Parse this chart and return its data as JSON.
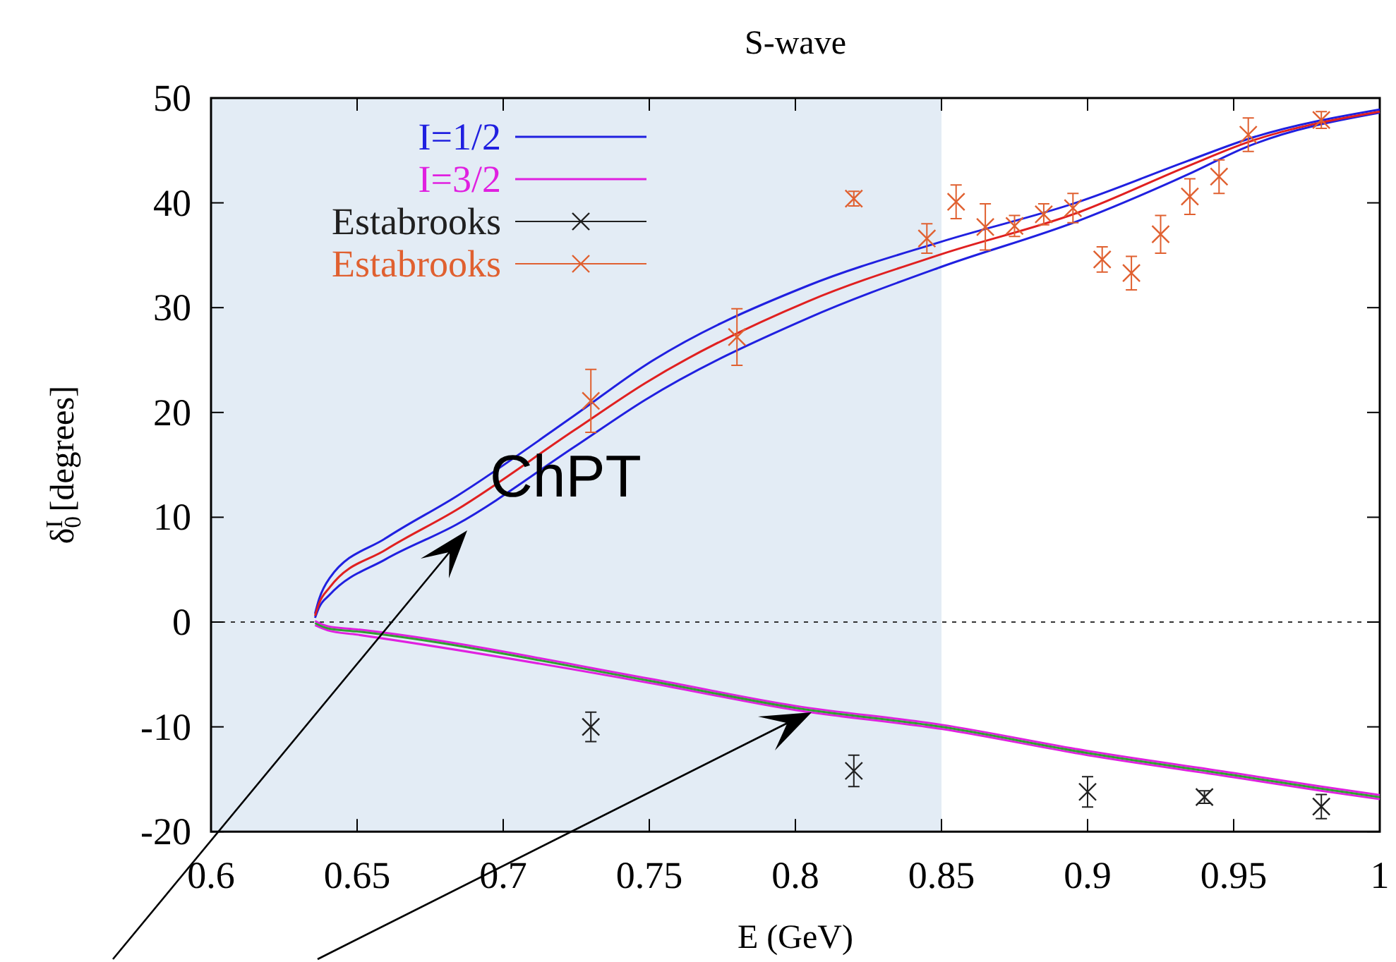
{
  "chart_data": {
    "type": "line",
    "title": "S-wave",
    "xlabel": "E (GeV)",
    "ylabel": "δ$_{0}$$^{I}$ [degrees]",
    "xlim": [
      0.6,
      1
    ],
    "xticks": [
      0.6,
      0.65,
      0.7,
      0.75,
      0.8,
      0.85,
      0.9,
      0.95,
      1
    ],
    "ylim": [
      -20,
      50
    ],
    "yticks": [
      -20,
      -10,
      0,
      10,
      20,
      30,
      40,
      50
    ],
    "grid": false,
    "legend": "top left",
    "line_style": "solid",
    "annotations": [
      "ChPT"
    ],
    "ref_lines": [
      {
        "axis": "y",
        "value": 0,
        "color": "#333333",
        "line_style": "dashed"
      }
    ],
    "bands": [
      {
        "axis": "x",
        "from": 0.6,
        "to": 0.85,
        "color": "#e3ecf5"
      }
    ],
    "series": [
      {
        "name": "I=1/2",
        "color": "#2020e0",
        "marker": "none",
        "x": [
          0.6356,
          0.637,
          0.6406,
          0.6598,
          0.684,
          0.7243,
          0.7486,
          0.8043,
          0.85,
          0.897,
          0.9343,
          0.955,
          1.0
        ],
        "values": [
          0.8,
          2.2,
          4.2,
          8.0,
          12.0,
          19.7,
          24.5,
          32.1,
          36.3,
          40.1,
          44.0,
          46.1,
          48.9
        ]
      },
      {
        "color": "#2020e0",
        "marker": "none",
        "x": [
          0.6356,
          0.637,
          0.6406,
          0.6598,
          0.684,
          0.7243,
          0.7486,
          0.8043,
          0.85,
          0.897,
          0.9343,
          0.955,
          1.0
        ],
        "values": [
          0.4,
          1.4,
          2.6,
          6.0,
          9.3,
          16.7,
          21.2,
          29.0,
          33.9,
          38.3,
          42.7,
          45.4,
          48.6
        ]
      },
      {
        "color": "#e02020",
        "marker": "none",
        "x": [
          0.6356,
          0.637,
          0.6406,
          0.6598,
          0.684,
          0.7243,
          0.7486,
          0.8043,
          0.85,
          0.897,
          0.9343,
          0.955,
          1.0
        ],
        "values": [
          0.6,
          1.8,
          3.3,
          6.9,
          10.7,
          18.3,
          22.8,
          30.6,
          35.1,
          39.1,
          43.5,
          45.8,
          48.7
        ]
      },
      {
        "name": "I=3/2",
        "color": "#e020e0",
        "marker": "none",
        "x": [
          0.6356,
          0.64,
          0.65,
          0.75,
          0.8,
          0.85,
          0.9,
          0.95,
          0.98,
          1.0
        ],
        "values": [
          0.1,
          -0.4,
          -0.7,
          -5.4,
          -8.0,
          -9.8,
          -12.3,
          -14.4,
          -15.7,
          -16.5
        ]
      },
      {
        "color": "#e020e0",
        "marker": "none",
        "x": [
          0.6356,
          0.64,
          0.65,
          0.75,
          0.8,
          0.85,
          0.9,
          0.95,
          0.98,
          1.0
        ],
        "values": [
          -0.3,
          -0.8,
          -1.2,
          -5.8,
          -8.4,
          -10.2,
          -12.7,
          -14.8,
          -16.1,
          -16.9
        ]
      },
      {
        "color": "#30a030",
        "marker": "none",
        "x": [
          0.6356,
          0.64,
          0.65,
          0.75,
          0.8,
          0.85,
          0.9,
          0.95,
          0.98,
          1.0
        ],
        "values": [
          -0.1,
          -0.6,
          -0.9,
          -5.6,
          -8.2,
          -10.0,
          -12.5,
          -14.6,
          -15.9,
          -16.7
        ]
      },
      {
        "name": "Estabrooks",
        "type": "scatter",
        "color": "#202020",
        "marker": "cross",
        "x": [
          0.73,
          0.82,
          0.9,
          0.94,
          0.98
        ],
        "values": [
          -10.0,
          -14.2,
          -16.2,
          -16.7,
          -17.6
        ],
        "errors": [
          1.4,
          1.5,
          1.45,
          0.6,
          1.15
        ]
      },
      {
        "name": "Estabrooks",
        "type": "scatter",
        "color": "#e06030",
        "marker": "cross",
        "x": [
          0.73,
          0.78,
          0.82,
          0.845,
          0.855,
          0.865,
          0.875,
          0.885,
          0.895,
          0.905,
          0.915,
          0.925,
          0.935,
          0.945,
          0.955,
          0.98
        ],
        "values": [
          21.1,
          27.2,
          40.4,
          36.6,
          40.1,
          37.7,
          37.8,
          38.9,
          39.5,
          34.6,
          33.3,
          37.0,
          40.6,
          42.5,
          46.5,
          47.9
        ],
        "errors": [
          3,
          2.7,
          0.7,
          1.4,
          1.6,
          2.2,
          1,
          1,
          1.4,
          1.2,
          1.6,
          1.8,
          1.7,
          1.6,
          1.6,
          0.8
        ]
      }
    ]
  }
}
